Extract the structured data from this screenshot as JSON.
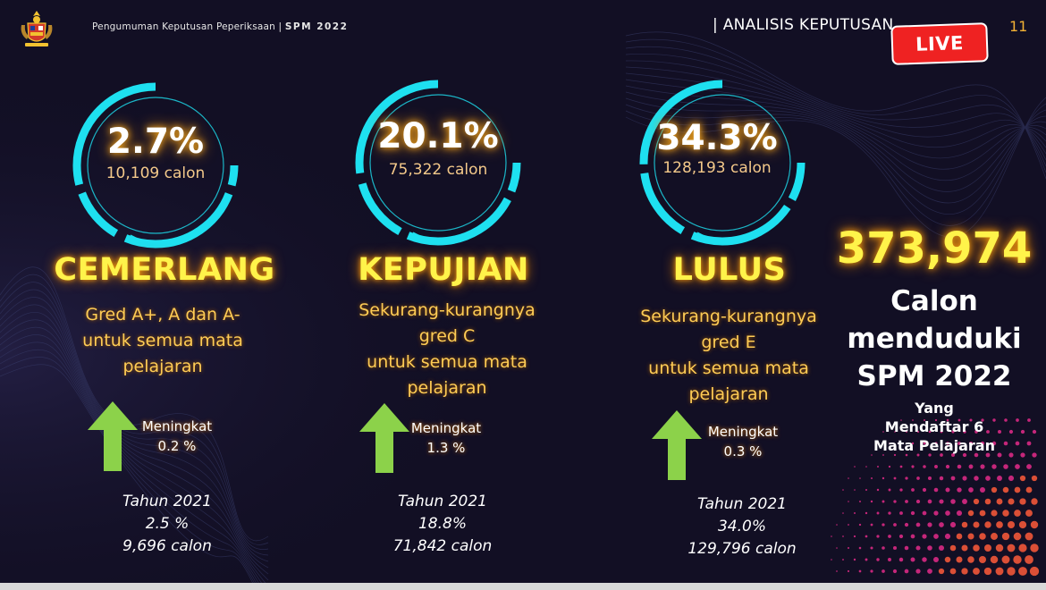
{
  "header": {
    "title": "Pengumuman Keputusan Peperiksaan",
    "exam": "SPM 2022",
    "section": "| ANALISIS KEPUTUSAN",
    "page_number": "11",
    "live_badge": "LIVE"
  },
  "colors": {
    "ring": "#1ee0f0",
    "highlight_yellow": "#fff34a",
    "arrow_green": "#8cd24a",
    "live_red": "#ef2222",
    "background": "#120f24"
  },
  "stats": [
    {
      "percent": "2.7%",
      "candidates": "10,109 calon",
      "category": "CEMERLANG",
      "description": [
        "Gred A+, A dan A-",
        "untuk semua mata",
        "pelajaran"
      ],
      "trend_label": "Meningkat",
      "trend_value": "0.2 %",
      "prev_year": "Tahun 2021",
      "prev_percent": "2.5 %",
      "prev_candidates": "9,696 calon"
    },
    {
      "percent": "20.1%",
      "candidates": "75,322 calon",
      "category": "KEPUJIAN",
      "description": [
        "Sekurang-kurangnya",
        "gred C",
        "untuk semua mata",
        "pelajaran"
      ],
      "trend_label": "Meningkat",
      "trend_value": "1.3 %",
      "prev_year": "Tahun 2021",
      "prev_percent": "18.8%",
      "prev_candidates": "71,842 calon"
    },
    {
      "percent": "34.3%",
      "candidates": "128,193 calon",
      "category": "LULUS",
      "description": [
        "Sekurang-kurangnya",
        "gred E",
        "untuk semua mata",
        "pelajaran"
      ],
      "trend_label": "Meningkat",
      "trend_value": "0.3 %",
      "prev_year": "Tahun 2021",
      "prev_percent": "34.0%",
      "prev_candidates": "129,796 calon"
    }
  ],
  "total": {
    "value": "373,974",
    "label": [
      "Calon",
      "menduduki",
      "SPM 2022"
    ],
    "note": [
      "Yang",
      "Mendaftar 6",
      "Mata Pelajaran"
    ]
  }
}
